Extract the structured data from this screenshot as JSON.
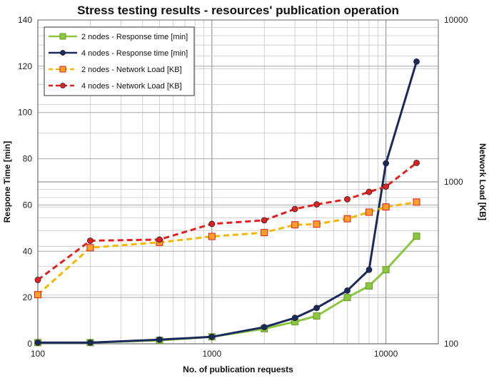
{
  "chart_data": {
    "type": "line",
    "title": "Stress testing results - resources' publication operation",
    "xlabel": "No. of publication requests",
    "ylabel": "Respone Time [min]",
    "y2label": "Network Load [KB]",
    "x_scale": "log",
    "xlim": [
      100,
      20000
    ],
    "ylim": [
      0,
      140
    ],
    "y2_scale": "log",
    "y2lim": [
      100,
      10000
    ],
    "grid": true,
    "legend_position": "top-left",
    "x_ticks": [
      "100",
      "1000",
      "10000"
    ],
    "y_ticks": [
      "0",
      "20",
      "40",
      "60",
      "80",
      "100",
      "120",
      "140"
    ],
    "y2_ticks": [
      "100",
      "1000",
      "10000"
    ],
    "x": [
      100,
      200,
      500,
      1000,
      2000,
      3000,
      4000,
      6000,
      8000,
      10000,
      15000
    ],
    "series": [
      {
        "name": "2 nodes - Response time [min]",
        "axis": "left",
        "color": "#8cc63f",
        "dashed": false,
        "marker": "square",
        "values": [
          0.5,
          0.5,
          1.5,
          3,
          6.5,
          9.5,
          12,
          20,
          25,
          32,
          46.5
        ]
      },
      {
        "name": "4 nodes - Response time [min]",
        "axis": "left",
        "color": "#1b2a5e",
        "dashed": false,
        "marker": "circle",
        "values": [
          0.5,
          0.5,
          1.8,
          3,
          7.2,
          11.2,
          15.5,
          23,
          32,
          78,
          122
        ]
      },
      {
        "name": "2 nodes - Network Load [KB]",
        "axis": "right",
        "color": "#f5b800",
        "marker_fill": "#ff9f2a",
        "marker_stroke": "#d42020",
        "dashed": true,
        "marker": "square",
        "values": [
          201,
          392,
          423,
          460,
          486,
          543,
          548,
          592,
          650,
          700,
          750
        ]
      },
      {
        "name": "4 nodes - Network Load [KB]",
        "axis": "right",
        "color": "#e32020",
        "dashed": true,
        "marker": "circle",
        "values": [
          248,
          433,
          440,
          550,
          579,
          680,
          726,
          781,
          867,
          935,
          1310
        ]
      }
    ]
  }
}
